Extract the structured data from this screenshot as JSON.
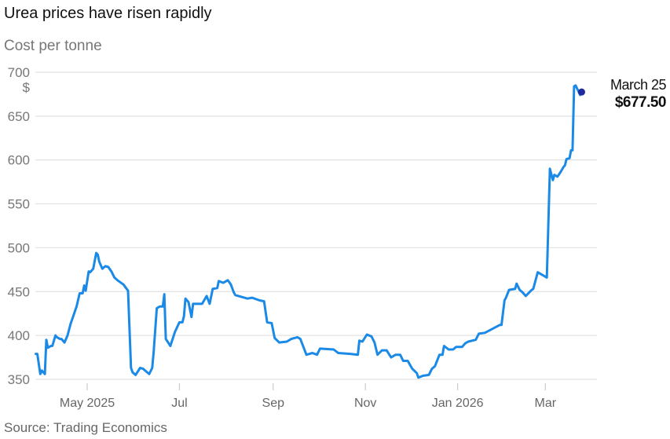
{
  "chart_data": {
    "type": "line",
    "title": "Urea prices have risen rapidly",
    "subtitle": "Cost per tonne",
    "ylabel": "$",
    "xlabel": "",
    "source": "Source: Trading Economics",
    "x_unit": "days since 2025-05-01",
    "ylim": [
      350,
      700
    ],
    "yticks": [
      350,
      400,
      450,
      500,
      550,
      600,
      650,
      700
    ],
    "xticks": [
      {
        "label": "May 2025",
        "day": 0
      },
      {
        "label": "Jul",
        "day": 61
      },
      {
        "label": "Sep",
        "day": 123
      },
      {
        "label": "Nov",
        "day": 184
      },
      {
        "label": "Jan 2026",
        "day": 245
      },
      {
        "label": "Mar",
        "day": 303
      }
    ],
    "grid": true,
    "series": [
      {
        "name": "Urea price",
        "color": "#1a8ae6",
        "points": [
          [
            -34,
            379
          ],
          [
            -33,
            379
          ],
          [
            -31,
            356
          ],
          [
            -30,
            360
          ],
          [
            -29,
            358
          ],
          [
            -28,
            356
          ],
          [
            -27,
            395
          ],
          [
            -26,
            386
          ],
          [
            -24,
            388
          ],
          [
            -23,
            388
          ],
          [
            -21,
            400
          ],
          [
            -20,
            398
          ],
          [
            -18,
            396
          ],
          [
            -17,
            396
          ],
          [
            -15,
            392
          ],
          [
            -13,
            400
          ],
          [
            -11,
            413
          ],
          [
            -7,
            433
          ],
          [
            -5,
            448
          ],
          [
            -3,
            448
          ],
          [
            -2,
            457
          ],
          [
            -1,
            451
          ],
          [
            1,
            473
          ],
          [
            2,
            472
          ],
          [
            4,
            476
          ],
          [
            6,
            494
          ],
          [
            7,
            492
          ],
          [
            8,
            484
          ],
          [
            10,
            476
          ],
          [
            12,
            479
          ],
          [
            14,
            478
          ],
          [
            16,
            473
          ],
          [
            18,
            466
          ],
          [
            20,
            463
          ],
          [
            24,
            458
          ],
          [
            27,
            451
          ],
          [
            29,
            363
          ],
          [
            30,
            358
          ],
          [
            32,
            355
          ],
          [
            35,
            363
          ],
          [
            37,
            362
          ],
          [
            41,
            356
          ],
          [
            43,
            363
          ],
          [
            44,
            382
          ],
          [
            46,
            431
          ],
          [
            48,
            433
          ],
          [
            50,
            433
          ],
          [
            51,
            447
          ],
          [
            52,
            396
          ],
          [
            55,
            388
          ],
          [
            58,
            404
          ],
          [
            61,
            415
          ],
          [
            63,
            415
          ],
          [
            64,
            422
          ],
          [
            65,
            442
          ],
          [
            67,
            438
          ],
          [
            69,
            421
          ],
          [
            70,
            436
          ],
          [
            76,
            436
          ],
          [
            79,
            445
          ],
          [
            81,
            436
          ],
          [
            83,
            453
          ],
          [
            86,
            454
          ],
          [
            87,
            462
          ],
          [
            90,
            460
          ],
          [
            93,
            463
          ],
          [
            95,
            458
          ],
          [
            97,
            449
          ],
          [
            98,
            446
          ],
          [
            106,
            442
          ],
          [
            109,
            443
          ],
          [
            114,
            440
          ],
          [
            117,
            439
          ],
          [
            119,
            415
          ],
          [
            122,
            414
          ],
          [
            124,
            397
          ],
          [
            127,
            392
          ],
          [
            132,
            393
          ],
          [
            135,
            396
          ],
          [
            139,
            398
          ],
          [
            141,
            396
          ],
          [
            145,
            378
          ],
          [
            149,
            380
          ],
          [
            152,
            378
          ],
          [
            154,
            385
          ],
          [
            163,
            384
          ],
          [
            166,
            380
          ],
          [
            174,
            379
          ],
          [
            179,
            378
          ],
          [
            180,
            394
          ],
          [
            182,
            393
          ],
          [
            185,
            401
          ],
          [
            188,
            399
          ],
          [
            190,
            392
          ],
          [
            192,
            378
          ],
          [
            195,
            383
          ],
          [
            198,
            383
          ],
          [
            201,
            375
          ],
          [
            204,
            378
          ],
          [
            207,
            378
          ],
          [
            209,
            371
          ],
          [
            212,
            371
          ],
          [
            215,
            362
          ],
          [
            218,
            357
          ],
          [
            219,
            352
          ],
          [
            222,
            354
          ],
          [
            226,
            355
          ],
          [
            228,
            362
          ],
          [
            230,
            365
          ],
          [
            233,
            378
          ],
          [
            235,
            378
          ],
          [
            236,
            388
          ],
          [
            239,
            384
          ],
          [
            242,
            384
          ],
          [
            244,
            387
          ],
          [
            248,
            387
          ],
          [
            250,
            391
          ],
          [
            252,
            393
          ],
          [
            257,
            395
          ],
          [
            259,
            402
          ],
          [
            263,
            403
          ],
          [
            273,
            412
          ],
          [
            274,
            412
          ],
          [
            276,
            440
          ],
          [
            277,
            443
          ],
          [
            279,
            452
          ],
          [
            283,
            453
          ],
          [
            284,
            459
          ],
          [
            286,
            452
          ],
          [
            288,
            449
          ],
          [
            290,
            445
          ],
          [
            294,
            452
          ],
          [
            295,
            453
          ],
          [
            298,
            472
          ],
          [
            300,
            470
          ],
          [
            302,
            468
          ],
          [
            304,
            466
          ],
          [
            306,
            590
          ],
          [
            308,
            577
          ],
          [
            309,
            583
          ],
          [
            311,
            581
          ],
          [
            313,
            586
          ],
          [
            315,
            592
          ],
          [
            316,
            594
          ],
          [
            317,
            601
          ],
          [
            319,
            602
          ],
          [
            320,
            611
          ],
          [
            321,
            611
          ],
          [
            322,
            684
          ],
          [
            323,
            685
          ],
          [
            325,
            678
          ],
          [
            326,
            674
          ],
          [
            327,
            677.5
          ]
        ]
      }
    ],
    "annotation": {
      "label": "March 25",
      "value": "$677.50",
      "day": 327,
      "y": 677.5,
      "dot_color": "#1f2a9c"
    }
  }
}
